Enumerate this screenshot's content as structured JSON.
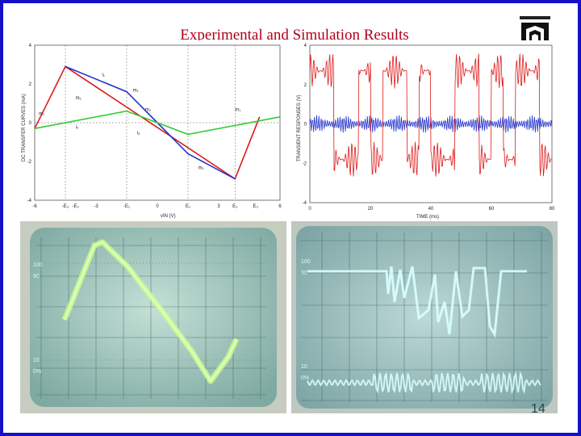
{
  "slide": {
    "title": "Experimental and Simulation Results",
    "page_number": "14"
  },
  "colors": {
    "border": "#1410c8",
    "title": "#b0001a",
    "red_trace": "#dd1a1a",
    "blue_trace": "#2233cc",
    "green_trace": "#33cc33",
    "scope_screen": "#9fc6c4",
    "scope_trace_green": "#c8ff8c",
    "scope_trace_cyan": "#d8ffff"
  },
  "dc_plot": {
    "ylabel": "DC TRANSFER CURVES (mA)",
    "xlabel": "vIN (V)",
    "x_ticks": [
      "-6",
      "-E₃",
      "-E₂",
      "-3",
      "-E₁",
      "0",
      "E₁",
      "3",
      "E₂",
      "E₃",
      "6"
    ],
    "y_ticks": [
      "4",
      "2",
      "0",
      "-2",
      "-4"
    ],
    "annotations": [
      "m₁",
      "i₁",
      "m₁",
      "m₂",
      "i₂",
      "m₁",
      "i₃",
      "m₁",
      "m₁"
    ]
  },
  "transient_plot": {
    "ylabel": "TRANSIENT RESPONSES (V)",
    "xlabel": "TIME (ms)",
    "x_ticks": [
      "0",
      "20",
      "40",
      "60",
      "80"
    ],
    "y_ticks": [
      "4",
      "2",
      "0",
      "-2",
      "-4"
    ]
  },
  "scope_left": {
    "labels": [
      "100",
      "90",
      "10",
      "0%"
    ]
  },
  "scope_right": {
    "labels": [
      "100",
      "90",
      "10",
      "0%"
    ]
  },
  "chart_data": [
    {
      "type": "line",
      "title": "",
      "xlabel": "vIN (V)",
      "ylabel": "DC TRANSFER CURVES (mA)",
      "xlim": [
        -6,
        6
      ],
      "ylim": [
        -4,
        4
      ],
      "series": [
        {
          "x": [
            -6,
            -4.5,
            3.8,
            5
          ],
          "y": [
            -0.3,
            2.9,
            -2.9,
            0.3
          ]
        },
        {
          "x": [
            -4.5,
            -1.5,
            0,
            1.5,
            3.8
          ],
          "y": [
            2.9,
            1.6,
            0,
            -1.6,
            -2.9
          ]
        },
        {
          "x": [
            -6,
            -1.5,
            1.5,
            6
          ],
          "y": [
            -0.3,
            0.6,
            -0.6,
            0.3
          ]
        }
      ]
    },
    {
      "type": "line",
      "title": "",
      "xlabel": "TIME (ms)",
      "ylabel": "TRANSIENT RESPONSES (V)",
      "xlim": [
        0,
        80
      ],
      "ylim": [
        -4,
        4
      ]
    }
  ]
}
